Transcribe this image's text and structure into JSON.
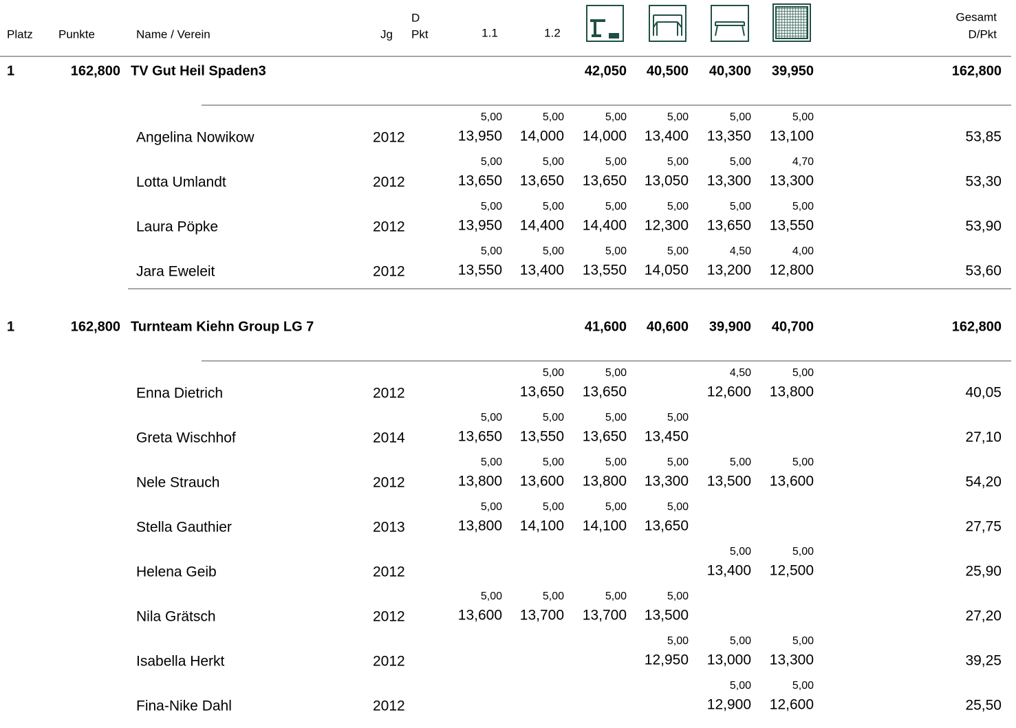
{
  "header": {
    "place": "Platz",
    "points": "Punkte",
    "name": "Name / Verein",
    "year": "Jg",
    "d_line1": "D",
    "d_line2": "Pkt",
    "col1": "1.1",
    "col2": "1.2",
    "total_line1": "Gesamt",
    "total_line2": "D/Pkt"
  },
  "teams": [
    {
      "place": "1",
      "points": "162,800",
      "name": "TV Gut Heil Spaden3",
      "apparatus_totals": [
        "42,050",
        "40,500",
        "40,300",
        "39,950"
      ],
      "total": "162,800",
      "athletes": [
        {
          "name": "Angelina Nowikow",
          "year": "2012",
          "scores": [
            {
              "d": "5,00",
              "score": "13,950"
            },
            {
              "d": "5,00",
              "score": "14,000"
            },
            {
              "d": "5,00",
              "score": "14,000"
            },
            {
              "d": "5,00",
              "score": "13,400"
            },
            {
              "d": "5,00",
              "score": "13,350"
            },
            {
              "d": "5,00",
              "score": "13,100"
            }
          ],
          "total": "53,85"
        },
        {
          "name": "Lotta Umlandt",
          "year": "2012",
          "scores": [
            {
              "d": "5,00",
              "score": "13,650"
            },
            {
              "d": "5,00",
              "score": "13,650"
            },
            {
              "d": "5,00",
              "score": "13,650"
            },
            {
              "d": "5,00",
              "score": "13,050"
            },
            {
              "d": "5,00",
              "score": "13,300"
            },
            {
              "d": "4,70",
              "score": "13,300"
            }
          ],
          "total": "53,30"
        },
        {
          "name": "Laura Pöpke",
          "year": "2012",
          "scores": [
            {
              "d": "5,00",
              "score": "13,950"
            },
            {
              "d": "5,00",
              "score": "14,400"
            },
            {
              "d": "5,00",
              "score": "14,400"
            },
            {
              "d": "5,00",
              "score": "12,300"
            },
            {
              "d": "5,00",
              "score": "13,650"
            },
            {
              "d": "5,00",
              "score": "13,550"
            }
          ],
          "total": "53,90"
        },
        {
          "name": "Jara Eweleit",
          "year": "2012",
          "scores": [
            {
              "d": "5,00",
              "score": "13,550"
            },
            {
              "d": "5,00",
              "score": "13,400"
            },
            {
              "d": "5,00",
              "score": "13,550"
            },
            {
              "d": "5,00",
              "score": "14,050"
            },
            {
              "d": "4,50",
              "score": "13,200"
            },
            {
              "d": "4,00",
              "score": "12,800"
            }
          ],
          "total": "53,60"
        }
      ]
    },
    {
      "place": "1",
      "points": "162,800",
      "name": "Turnteam Kiehn Group LG 7",
      "apparatus_totals": [
        "41,600",
        "40,600",
        "39,900",
        "40,700"
      ],
      "total": "162,800",
      "athletes": [
        {
          "name": "Enna Dietrich",
          "year": "2012",
          "scores": [
            null,
            {
              "d": "5,00",
              "score": "13,650"
            },
            {
              "d": "5,00",
              "score": "13,650"
            },
            null,
            {
              "d": "4,50",
              "score": "12,600"
            },
            {
              "d": "5,00",
              "score": "13,800"
            }
          ],
          "total": "40,05"
        },
        {
          "name": "Greta Wischhof",
          "year": "2014",
          "scores": [
            {
              "d": "5,00",
              "score": "13,650"
            },
            {
              "d": "5,00",
              "score": "13,550"
            },
            {
              "d": "5,00",
              "score": "13,650"
            },
            {
              "d": "5,00",
              "score": "13,450"
            },
            null,
            null
          ],
          "total": "27,10"
        },
        {
          "name": "Nele Strauch",
          "year": "2012",
          "scores": [
            {
              "d": "5,00",
              "score": "13,800"
            },
            {
              "d": "5,00",
              "score": "13,600"
            },
            {
              "d": "5,00",
              "score": "13,800"
            },
            {
              "d": "5,00",
              "score": "13,300"
            },
            {
              "d": "5,00",
              "score": "13,500"
            },
            {
              "d": "5,00",
              "score": "13,600"
            }
          ],
          "total": "54,20"
        },
        {
          "name": "Stella Gauthier",
          "year": "2013",
          "scores": [
            {
              "d": "5,00",
              "score": "13,800"
            },
            {
              "d": "5,00",
              "score": "14,100"
            },
            {
              "d": "5,00",
              "score": "14,100"
            },
            {
              "d": "5,00",
              "score": "13,650"
            },
            null,
            null
          ],
          "total": "27,75"
        },
        {
          "name": "Helena Geib",
          "year": "2012",
          "scores": [
            null,
            null,
            null,
            null,
            {
              "d": "5,00",
              "score": "13,400"
            },
            {
              "d": "5,00",
              "score": "12,500"
            }
          ],
          "total": "25,90"
        },
        {
          "name": "Nila Grätsch",
          "year": "2012",
          "scores": [
            {
              "d": "5,00",
              "score": "13,600"
            },
            {
              "d": "5,00",
              "score": "13,700"
            },
            {
              "d": "5,00",
              "score": "13,700"
            },
            {
              "d": "5,00",
              "score": "13,500"
            },
            null,
            null
          ],
          "total": "27,20"
        },
        {
          "name": "Isabella Herkt",
          "year": "2012",
          "scores": [
            null,
            null,
            null,
            {
              "d": "5,00",
              "score": "12,950"
            },
            {
              "d": "5,00",
              "score": "13,000"
            },
            {
              "d": "5,00",
              "score": "13,300"
            }
          ],
          "total": "39,25"
        },
        {
          "name": "Fina-Nike Dahl",
          "year": "2012",
          "scores": [
            null,
            null,
            null,
            null,
            {
              "d": "5,00",
              "score": "12,900"
            },
            {
              "d": "5,00",
              "score": "12,600"
            }
          ],
          "total": "25,50"
        }
      ]
    }
  ]
}
